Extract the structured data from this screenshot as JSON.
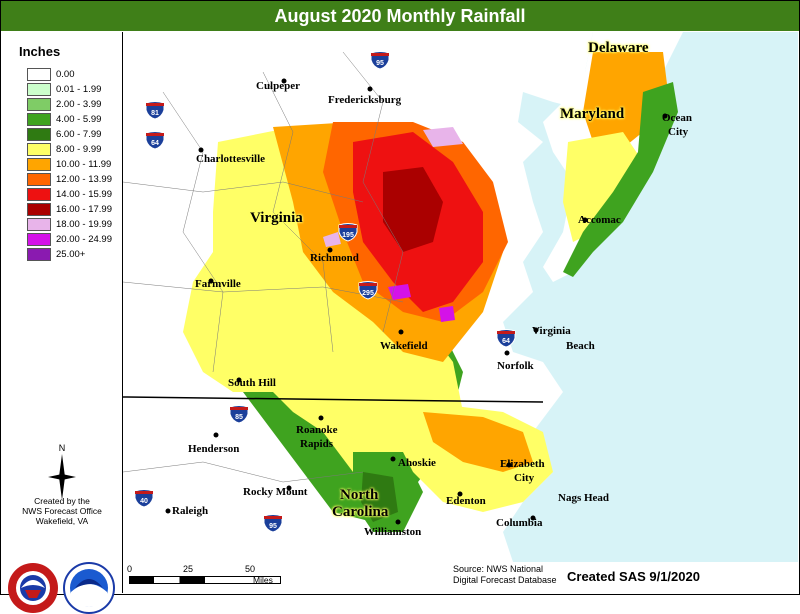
{
  "title": "August 2020 Monthly Rainfall",
  "legend": {
    "title": "Inches",
    "items": [
      {
        "label": "0.00",
        "color": "#ffffff"
      },
      {
        "label": "0.01 - 1.99",
        "color": "#ccffcc"
      },
      {
        "label": "2.00 - 3.99",
        "color": "#7fcc66"
      },
      {
        "label": "4.00 - 5.99",
        "color": "#3fa31f"
      },
      {
        "label": "6.00 - 7.99",
        "color": "#2f7a12"
      },
      {
        "label": "8.00 - 9.99",
        "color": "#ffff66"
      },
      {
        "label": "10.00 - 11.99",
        "color": "#ffa500"
      },
      {
        "label": "12.00 - 13.99",
        "color": "#ff6600"
      },
      {
        "label": "14.00 - 15.99",
        "color": "#ee1111"
      },
      {
        "label": "16.00 - 17.99",
        "color": "#aa0000"
      },
      {
        "label": "18.00 - 19.99",
        "color": "#e8b4ea"
      },
      {
        "label": "20.00 - 24.99",
        "color": "#d412e8"
      },
      {
        "label": "25.00+",
        "color": "#8a1ab0"
      }
    ]
  },
  "office": {
    "line1": "Created by the",
    "line2": "NWS Forecast Office",
    "line3": "Wakefield, VA"
  },
  "logos": {
    "nws": "nws-logo",
    "noaa": "noaa-logo",
    "compass_letter": "N"
  },
  "states": {
    "virginia": "Virginia",
    "maryland": "Maryland",
    "delaware": "Delaware",
    "nc_line1": "North",
    "nc_line2": "Carolina"
  },
  "cities": {
    "culpeper": "Culpeper",
    "fredericksburg": "Fredericksburg",
    "charlottesville": "Charlottesville",
    "richmond": "Richmond",
    "farmville": "Farmville",
    "wakefield": "Wakefield",
    "south_hill": "South Hill",
    "norfolk": "Norfolk",
    "virginia_beach_1": "Virginia",
    "virginia_beach_2": "Beach",
    "ocean_city_1": "Ocean",
    "ocean_city_2": "City",
    "accomac": "Accomac",
    "henderson": "Henderson",
    "roanoke_rapids_1": "Roanoke",
    "roanoke_rapids_2": "Rapids",
    "ahoskie": "Ahoskie",
    "elizabeth_city_1": "Elizabeth",
    "elizabeth_city_2": "City",
    "rocky_mount": "Rocky Mount",
    "raleigh": "Raleigh",
    "edenton": "Edenton",
    "nags_head": "Nags Head",
    "columbia": "Columbia",
    "williamston": "Williamston"
  },
  "interstates": {
    "i95_north": "95",
    "i81": "81",
    "i64_west": "64",
    "i195": "195",
    "i295": "295",
    "i64_east": "64",
    "i85": "85",
    "i40": "40",
    "i95_south": "95"
  },
  "scale": {
    "zero": "0",
    "mid": "25",
    "end": "50",
    "unit": "Miles"
  },
  "source": {
    "line1": "Source: NWS National",
    "line2": "Digital Forecast Database"
  },
  "created": "Created SAS 9/1/2020"
}
